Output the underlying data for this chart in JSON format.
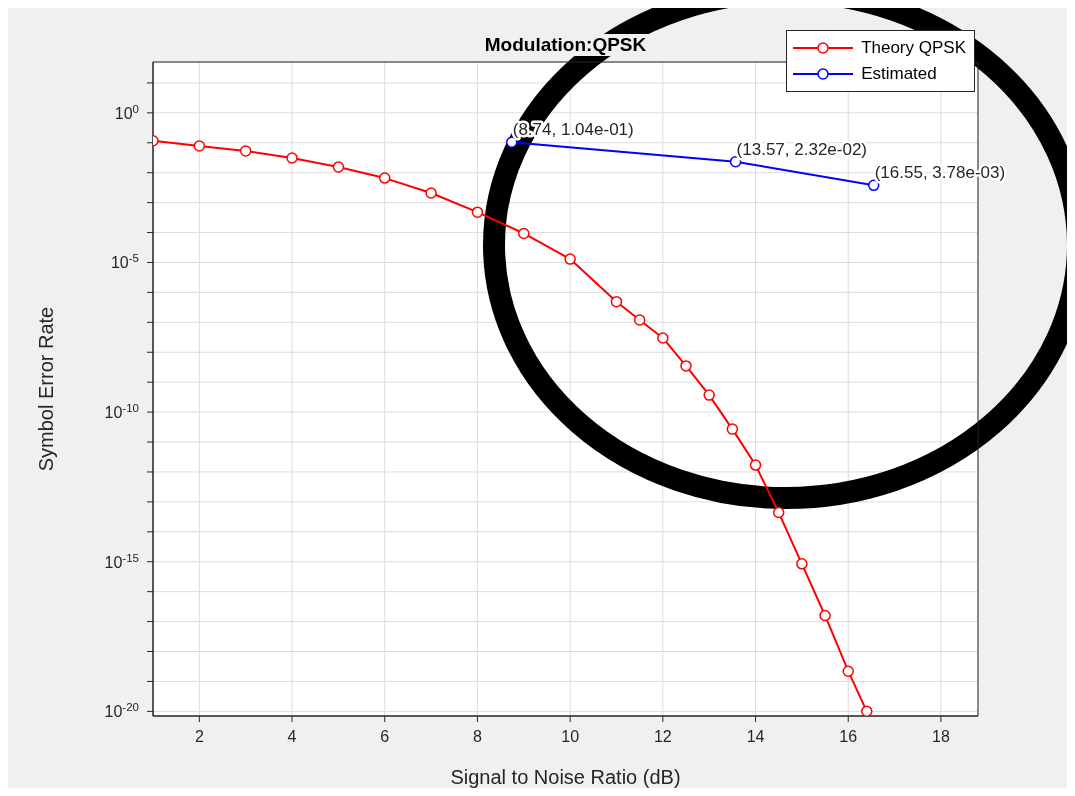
{
  "chart_data": {
    "type": "line",
    "title": "Modulation:QPSK",
    "xlabel": "Signal to Noise Ratio (dB)",
    "ylabel": "Symbol Error Rate",
    "log": "y",
    "grid": true,
    "legend": "top right",
    "xlim": [
      1,
      18.8
    ],
    "xticks": [
      2,
      4,
      6,
      8,
      10,
      12,
      14,
      16,
      18
    ],
    "ylim": [
      7e-21,
      50
    ],
    "yticks": [
      {
        "value": 1e-20,
        "label": "10$^{-20}$"
      },
      {
        "value": 1e-19,
        "label": null
      },
      {
        "value": 1e-18,
        "label": null
      },
      {
        "value": 1e-17,
        "label": null
      },
      {
        "value": 1e-16,
        "label": null
      },
      {
        "value": 1e-15,
        "label": "10$^{-15}$"
      },
      {
        "value": 1e-14,
        "label": null
      },
      {
        "value": 1e-13,
        "label": null
      },
      {
        "value": 1e-12,
        "label": null
      },
      {
        "value": 1e-11,
        "label": null
      },
      {
        "value": 1e-10,
        "label": "10$^{-10}$"
      },
      {
        "value": 1e-09,
        "label": null
      },
      {
        "value": 1e-08,
        "label": null
      },
      {
        "value": 1e-07,
        "label": null
      },
      {
        "value": 1e-06,
        "label": null
      },
      {
        "value": 1e-05,
        "label": "10$^{-5}$"
      },
      {
        "value": 0.0001,
        "label": null
      },
      {
        "value": 0.001,
        "label": null
      },
      {
        "value": 0.01,
        "label": null
      },
      {
        "value": 0.1,
        "label": null
      },
      {
        "value": 1,
        "label": "10$^{0}$"
      },
      {
        "value": 10,
        "label": null
      }
    ],
    "series": [
      {
        "name": "Theory QPSK",
        "color": "#ff0000",
        "marker": "circle",
        "x": [
          1,
          2,
          3,
          4,
          5,
          6,
          7,
          8,
          9,
          10,
          11,
          11.5,
          12,
          12.5,
          13,
          13.5,
          14,
          14.5,
          15,
          15.5,
          16,
          16.4
        ],
        "values": [
          0.117,
          0.078,
          0.053,
          0.031,
          0.0155,
          0.0066,
          0.0021,
          0.00048,
          9.3e-05,
          1.3e-05,
          4.9e-07,
          1.2e-07,
          3e-08,
          3.5e-09,
          3.7e-10,
          2.7e-11,
          1.7e-12,
          4.4e-14,
          8.5e-16,
          1.6e-17,
          2.2e-19,
          1e-20
        ]
      },
      {
        "name": "Estimated",
        "color": "#0000ff",
        "marker": "circle",
        "x": [
          8.74,
          13.57,
          16.55
        ],
        "values": [
          0.104,
          0.0232,
          0.00378
        ]
      }
    ],
    "annotations": [
      {
        "text": "(8.74, 1.04e-01)",
        "x": 8.74,
        "y": 0.104
      },
      {
        "text": "(13.57, 2.32e-02)",
        "x": 13.57,
        "y": 0.0232
      },
      {
        "text": "(16.55, 3.78e-03)",
        "x": 16.55,
        "y": 0.00378
      }
    ]
  }
}
